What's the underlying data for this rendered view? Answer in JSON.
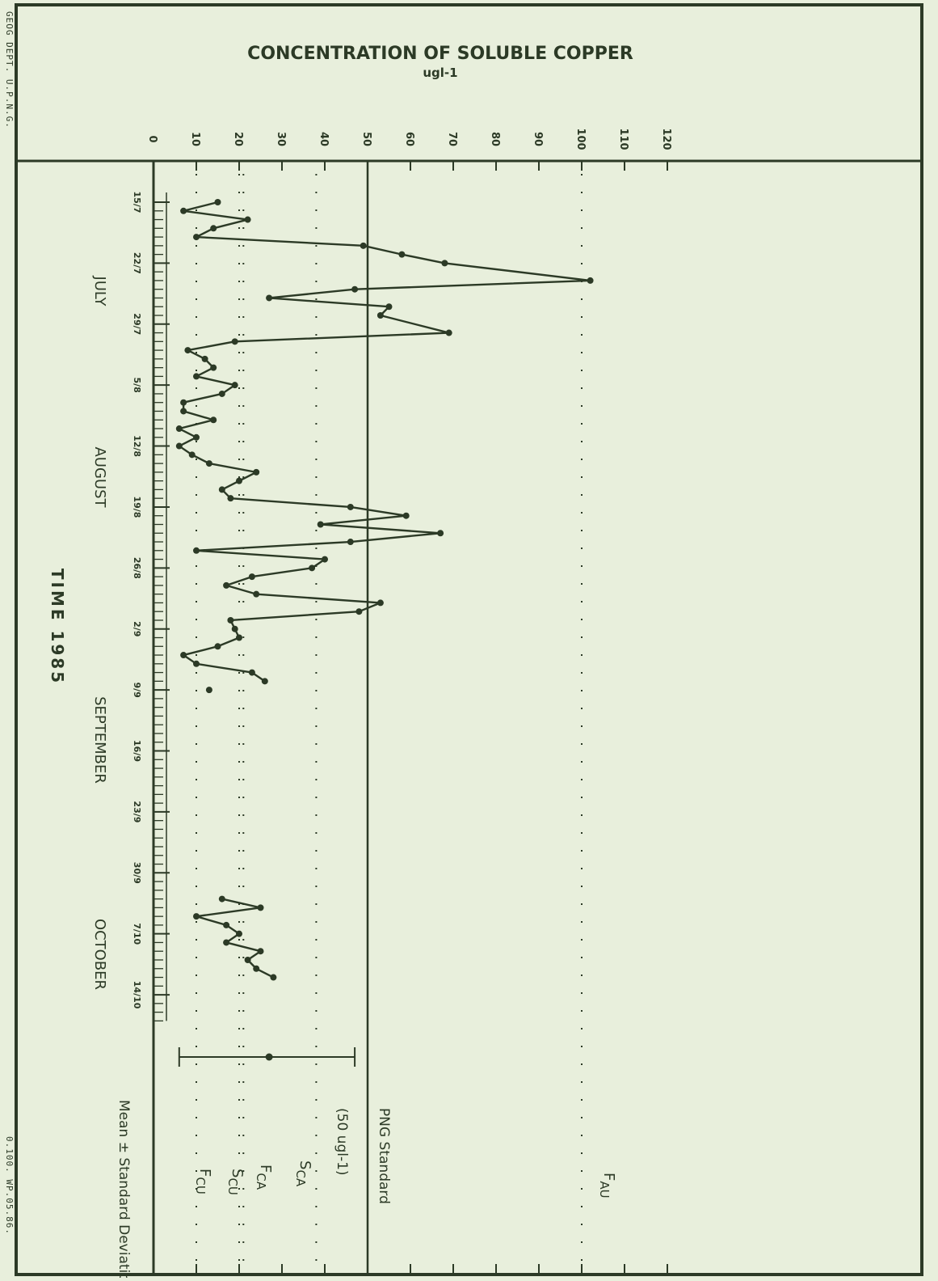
{
  "margin_notes": {
    "top_left": "GEOG DEPT. U.P.N.G.",
    "bottom_left": "0.100. WP.05.86."
  },
  "chart_data": {
    "type": "line",
    "title": "CONCENTRATION OF SOLUBLE COPPER",
    "ylabel": "ugl-1",
    "xlabel": "TIME 1985",
    "ylim": [
      0,
      120
    ],
    "y_ticks": [
      0,
      10,
      20,
      30,
      40,
      50,
      60,
      70,
      80,
      90,
      100,
      110,
      120
    ],
    "x_range_days": [
      "15/7",
      "17/10"
    ],
    "date_ticks": [
      "15/7",
      "22/7",
      "29/7",
      "5/8",
      "12/8",
      "19/8",
      "26/8",
      "2/9",
      "9/9",
      "16/9",
      "23/9",
      "30/9",
      "7/10",
      "14/10"
    ],
    "month_labels": [
      "JULY",
      "AUGUST",
      "SEPTEMBER",
      "OCTOBER"
    ],
    "standard_line": {
      "value": 50,
      "label": "PNG Standard",
      "sublabel": "(50 ugl-1)"
    },
    "reference_lines": [
      {
        "name": "F",
        "sub": "AU",
        "value": 100
      },
      {
        "name": "S",
        "sub": "CA",
        "value": 38
      },
      {
        "name": "F",
        "sub": "CA",
        "value": 21
      },
      {
        "name": "S",
        "sub": "CU",
        "value": 20
      },
      {
        "name": "F",
        "sub": "CU",
        "value": 10
      }
    ],
    "mean_sd": {
      "label": "Mean ± Standard Deviation",
      "mean": 27,
      "low": 6,
      "high": 47
    },
    "series": [
      {
        "x": [
          "15/7",
          "16/7",
          "17/7",
          "18/7",
          "19/7",
          "20/7",
          "21/7",
          "22/7",
          "24/7",
          "25/7",
          "26/7",
          "27/7",
          "28/7",
          "30/7",
          "31/7",
          "1/8",
          "2/8",
          "3/8",
          "4/8",
          "5/8",
          "6/8",
          "7/8",
          "8/8",
          "9/8",
          "10/8",
          "11/8",
          "12/8",
          "13/8",
          "14/8",
          "15/8",
          "16/8",
          "17/8",
          "18/8",
          "19/8",
          "20/8",
          "21/8",
          "22/8",
          "23/8",
          "24/8",
          "25/8",
          "26/8",
          "27/8",
          "28/8",
          "29/8",
          "30/8",
          "31/8",
          "1/9",
          "2/9",
          "3/9",
          "4/9",
          "5/9",
          "6/9",
          "7/9",
          "8/9"
        ],
        "values": [
          15,
          7,
          22,
          14,
          10,
          49,
          58,
          68,
          102,
          47,
          27,
          55,
          53,
          69,
          19,
          8,
          12,
          14,
          10,
          19,
          16,
          7,
          7,
          14,
          6,
          10,
          6,
          9,
          13,
          24,
          20,
          16,
          18,
          46,
          59,
          39,
          67,
          46,
          10,
          40,
          37,
          23,
          17,
          24,
          53,
          48,
          18,
          19,
          20,
          15,
          7,
          10,
          23,
          26
        ]
      },
      {
        "x": [
          "9/9"
        ],
        "values": [
          13
        ]
      },
      {
        "x": [
          "3/10",
          "4/10",
          "5/10",
          "6/10",
          "7/10",
          "8/10",
          "9/10",
          "10/10",
          "11/10",
          "12/10"
        ],
        "values": [
          16,
          25,
          10,
          17,
          20,
          17,
          25,
          22,
          24,
          28
        ]
      }
    ]
  }
}
